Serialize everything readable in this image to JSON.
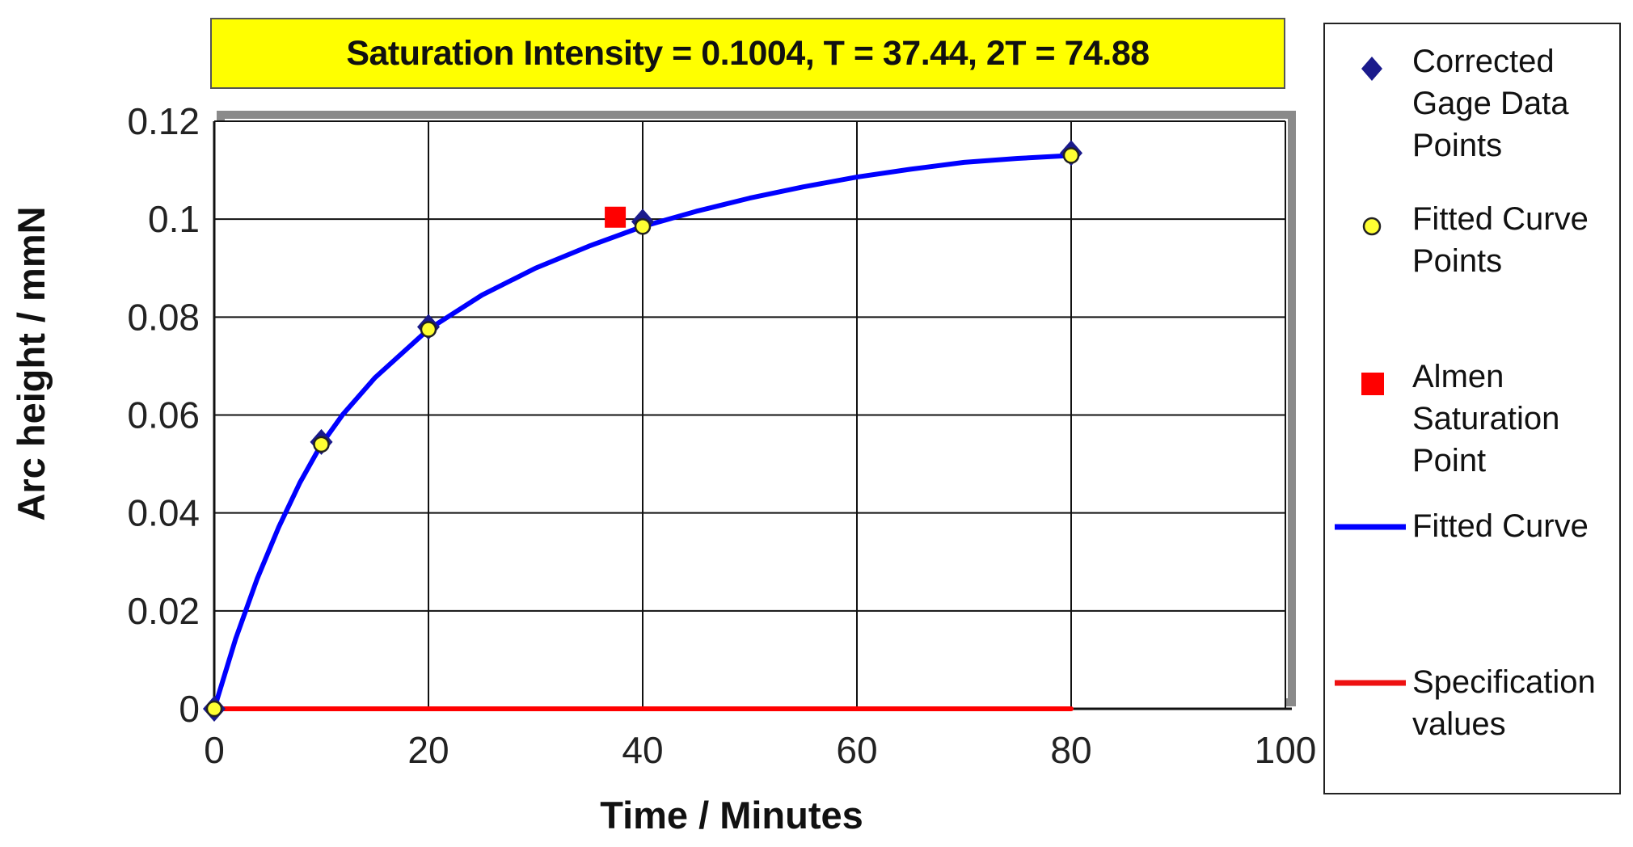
{
  "chart_data": {
    "type": "scatter",
    "title": "Saturation Intensity = 0.1004, T = 37.44, 2T = 74.88",
    "xlabel": "Time / Minutes",
    "ylabel": "Arc height / mmN",
    "xlim": [
      0,
      100
    ],
    "ylim": [
      0,
      0.12
    ],
    "xticks": [
      "0",
      "20",
      "40",
      "60",
      "80",
      "100"
    ],
    "yticks": [
      "0",
      "0.02",
      "0.04",
      "0.06",
      "0.08",
      "0.1",
      "0.12"
    ],
    "grid": true,
    "legend_position": "right",
    "series": [
      {
        "name": "Corrected Gage Data Points",
        "kind": "marker-diamond",
        "color": "#1a1a8c",
        "x": [
          0,
          10,
          20,
          40,
          80
        ],
        "y": [
          0,
          0.0545,
          0.078,
          0.0995,
          0.1135
        ]
      },
      {
        "name": "Fitted Curve Points",
        "kind": "marker-circle",
        "color": "#ffff33",
        "x": [
          0,
          10,
          20,
          40,
          80
        ],
        "y": [
          0,
          0.054,
          0.0775,
          0.0985,
          0.113
        ]
      },
      {
        "name": "Almen Saturation Point",
        "kind": "marker-square",
        "color": "#ff0000",
        "x": [
          37.44
        ],
        "y": [
          0.1004
        ]
      },
      {
        "name": "Fitted Curve",
        "kind": "line",
        "color": "#0000ff",
        "x": [
          0,
          2,
          4,
          6,
          8,
          10,
          12,
          15,
          20,
          25,
          30,
          35,
          40,
          45,
          50,
          55,
          60,
          65,
          70,
          75,
          80
        ],
        "y": [
          0,
          0.0143,
          0.0265,
          0.037,
          0.0462,
          0.054,
          0.0601,
          0.0676,
          0.0775,
          0.0845,
          0.09,
          0.0945,
          0.0985,
          0.1016,
          0.1043,
          0.1066,
          0.1086,
          0.1102,
          0.1116,
          0.1124,
          0.113
        ]
      },
      {
        "name": "Specification values",
        "kind": "line",
        "color": "#ff0000",
        "x": [
          0,
          80
        ],
        "y": [
          0,
          0
        ]
      }
    ]
  },
  "legend": {
    "items": [
      {
        "label": "Corrected\nGage Data\nPoints"
      },
      {
        "label": "Fitted Curve\nPoints"
      },
      {
        "label": "Almen\nSaturation\nPoint"
      },
      {
        "label": "Fitted Curve"
      },
      {
        "label": "Specification\nvalues"
      }
    ]
  }
}
